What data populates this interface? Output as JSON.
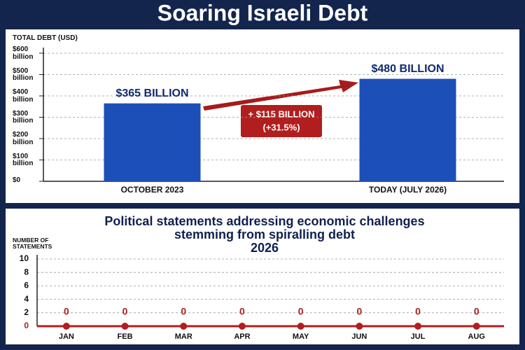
{
  "title": "Soaring Israeli Debt",
  "chart_data": [
    {
      "type": "bar",
      "y_label": "TOTAL DEBT (USD)",
      "categories": [
        "OCTOBER 2023",
        "TODAY (JULY 2026)"
      ],
      "values": [
        365,
        480
      ],
      "value_labels": [
        "$365 BILLION",
        "$480 BILLION"
      ],
      "color": "#1d4fb8",
      "ylim": [
        0,
        600
      ],
      "yticks": [
        {
          "value": 0,
          "label": "$0"
        },
        {
          "value": 100,
          "label": "$100 billion"
        },
        {
          "value": 200,
          "label": "$200 billion"
        },
        {
          "value": 300,
          "label": "$300 billion"
        },
        {
          "value": 400,
          "label": "$400 billion"
        },
        {
          "value": 500,
          "label": "$500 billion"
        },
        {
          "value": 600,
          "label": "$600 billion"
        }
      ],
      "grid": true,
      "annotation": [
        "+ $115 BILLION",
        "(+31.5%)"
      ]
    },
    {
      "type": "line",
      "title": [
        "Political statements addressing economic challenges",
        "stemming from spiralling debt",
        "2026"
      ],
      "y_label": "NUMBER OF STATEMENTS",
      "categories": [
        "JAN",
        "FEB",
        "MAR",
        "APR",
        "MAY",
        "JUN",
        "JUL",
        "AUG"
      ],
      "values": [
        0,
        0,
        0,
        0,
        0,
        0,
        0,
        0
      ],
      "color": "#b01e1e",
      "ylim": [
        0,
        10
      ],
      "yticks": [
        0,
        2,
        4,
        6,
        8,
        10
      ],
      "grid": true
    }
  ]
}
